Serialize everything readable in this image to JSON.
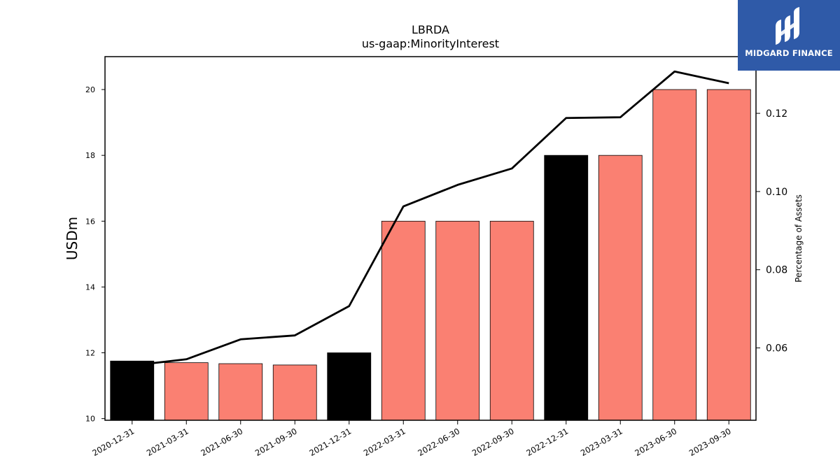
{
  "chart_data": {
    "type": "bar",
    "title": "LBRDA",
    "subtitle": "us-gaap:MinorityInterest",
    "ylabel": "USDm",
    "y2label": "Percentage of Assets",
    "categories": [
      "2020-12-31",
      "2021-03-31",
      "2021-06-30",
      "2021-09-30",
      "2021-12-31",
      "2022-03-31",
      "2022-06-30",
      "2022-09-30",
      "2022-12-31",
      "2023-03-31",
      "2023-06-30",
      "2023-09-30"
    ],
    "values": [
      11.75,
      11.7,
      11.67,
      11.63,
      12.0,
      16.0,
      16.0,
      16.0,
      18.0,
      18.0,
      20.0,
      20.0
    ],
    "bar_colors": [
      "#000000",
      "#fa8072",
      "#fa8072",
      "#fa8072",
      "#000000",
      "#fa8072",
      "#fa8072",
      "#fa8072",
      "#000000",
      "#fa8072",
      "#fa8072",
      "#fa8072"
    ],
    "line_values": [
      0.0555,
      0.0571,
      0.0622,
      0.0632,
      0.0707,
      0.0962,
      0.1017,
      0.1059,
      0.1188,
      0.119,
      0.1307,
      0.1277
    ],
    "line_color": "#000000",
    "ylim": [
      9.95,
      21.0
    ],
    "y_ticks": [
      10,
      12,
      14,
      16,
      18,
      20
    ],
    "y2lim": [
      0.0415,
      0.1345
    ],
    "y2_ticks": [
      0.06,
      0.08,
      0.1,
      0.12
    ],
    "y2_tick_labels": [
      "0.06",
      "0.08",
      "0.10",
      "0.12"
    ],
    "grid": false,
    "legend": "none"
  },
  "logo": {
    "text": "MIDGARD FINANCE",
    "background": "#2f5aa8",
    "mark_icon": "midgard-logo-icon"
  }
}
